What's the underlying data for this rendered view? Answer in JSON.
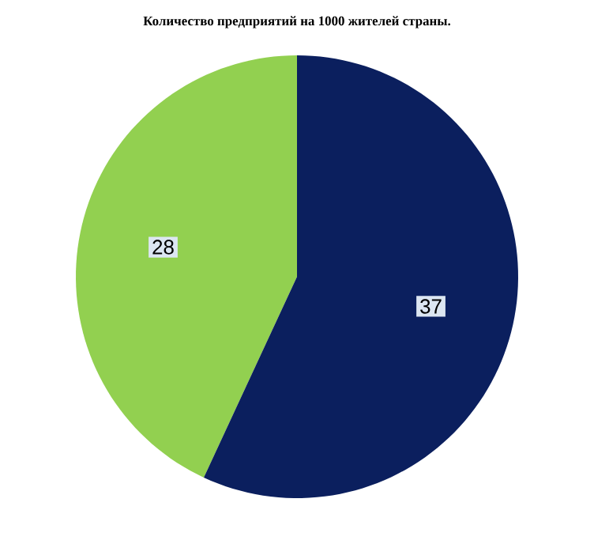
{
  "chart_data": {
    "type": "pie",
    "title": "Количество предприятий на 1000 жителей страны.",
    "categories": [
      null,
      null
    ],
    "values": [
      37,
      28
    ],
    "colors": [
      "#0b1f5e",
      "#92d050"
    ],
    "data_labels": true
  }
}
